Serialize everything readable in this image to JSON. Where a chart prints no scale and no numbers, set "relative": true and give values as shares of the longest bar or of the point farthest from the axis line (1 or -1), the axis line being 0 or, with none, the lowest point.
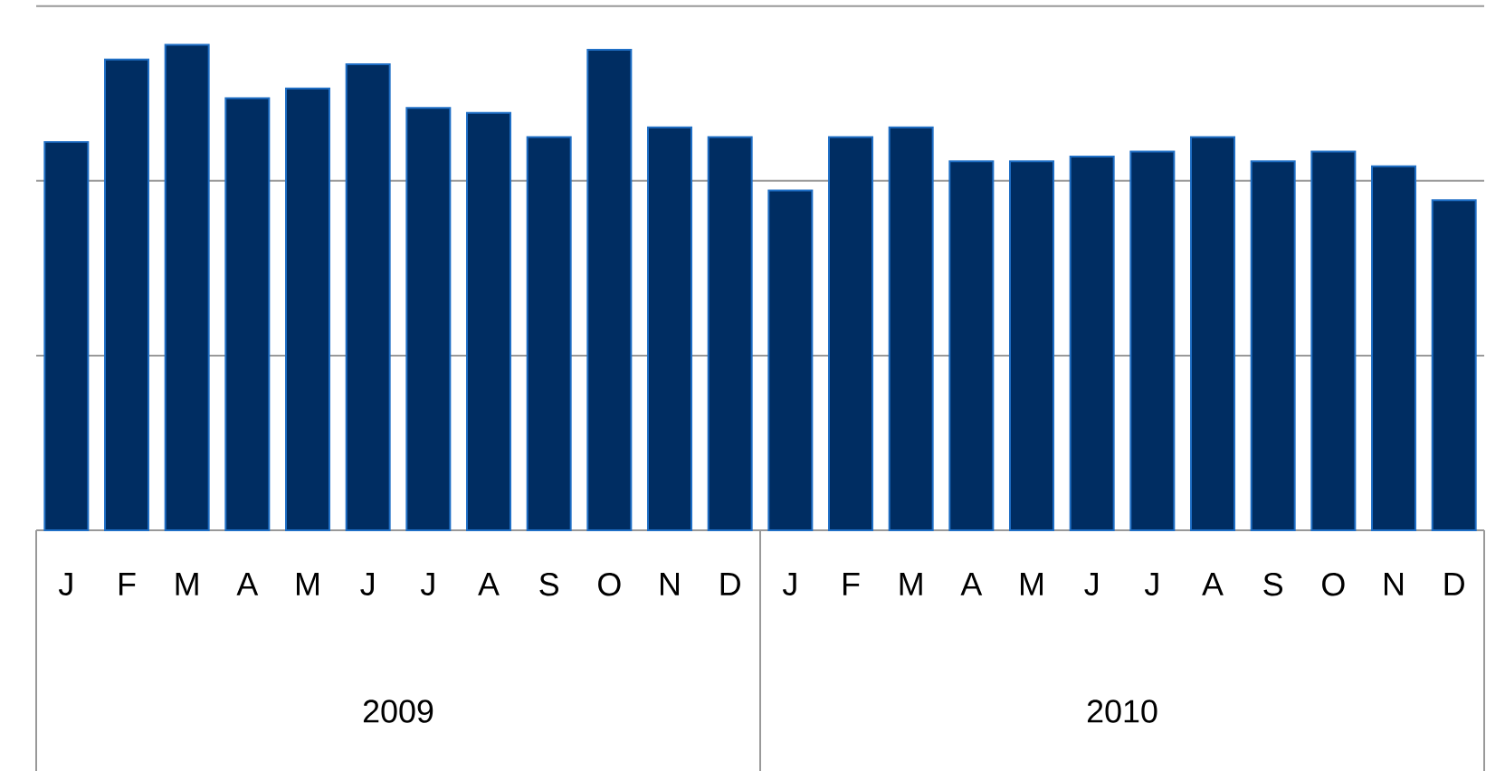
{
  "chart_data": {
    "type": "bar",
    "relative": true,
    "color": "#002d62",
    "ref_lines": [
      {
        "axis": "y",
        "value": 0.36,
        "color": "#999999"
      },
      {
        "axis": "y",
        "value": 0.72,
        "color": "#999999"
      },
      {
        "axis": "y",
        "value": 1.08,
        "color": "#999999"
      }
    ],
    "categories": [
      "J",
      "F",
      "M",
      "A",
      "M",
      "J",
      "J",
      "A",
      "S",
      "O",
      "N",
      "D",
      "J",
      "F",
      "M",
      "A",
      "M",
      "J",
      "J",
      "A",
      "S",
      "O",
      "N",
      "D"
    ],
    "values": [
      0.8,
      0.97,
      1.0,
      0.89,
      0.91,
      0.96,
      0.87,
      0.86,
      0.81,
      0.99,
      0.83,
      0.81,
      0.7,
      0.81,
      0.83,
      0.76,
      0.76,
      0.77,
      0.78,
      0.81,
      0.76,
      0.78,
      0.75,
      0.68
    ],
    "annotations": [
      "2009",
      "2010"
    ]
  }
}
